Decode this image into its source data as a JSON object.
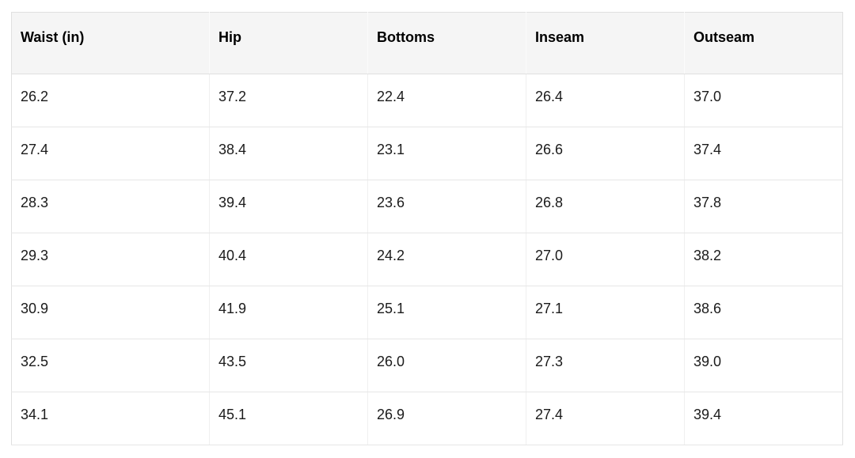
{
  "colors": {
    "header_bg": "#f5f5f5",
    "table_border": "#e0e0e0",
    "row_border": "#e6e6e6",
    "column_border": "#f0f0f0",
    "header_text": "#000000",
    "body_text": "#1b1b1b",
    "page_bg": "#ffffff"
  },
  "chart_data": {
    "type": "table",
    "title": "",
    "columns": [
      "Waist (in)",
      "Hip",
      "Bottoms",
      "Inseam",
      "Outseam"
    ],
    "rows": [
      [
        "26.2",
        "37.2",
        "22.4",
        "26.4",
        "37.0"
      ],
      [
        "27.4",
        "38.4",
        "23.1",
        "26.6",
        "37.4"
      ],
      [
        "28.3",
        "39.4",
        "23.6",
        "26.8",
        "37.8"
      ],
      [
        "29.3",
        "40.4",
        "24.2",
        "27.0",
        "38.2"
      ],
      [
        "30.9",
        "41.9",
        "25.1",
        "27.1",
        "38.6"
      ],
      [
        "32.5",
        "43.5",
        "26.0",
        "27.3",
        "39.0"
      ],
      [
        "34.1",
        "45.1",
        "26.9",
        "27.4",
        "39.4"
      ]
    ]
  }
}
